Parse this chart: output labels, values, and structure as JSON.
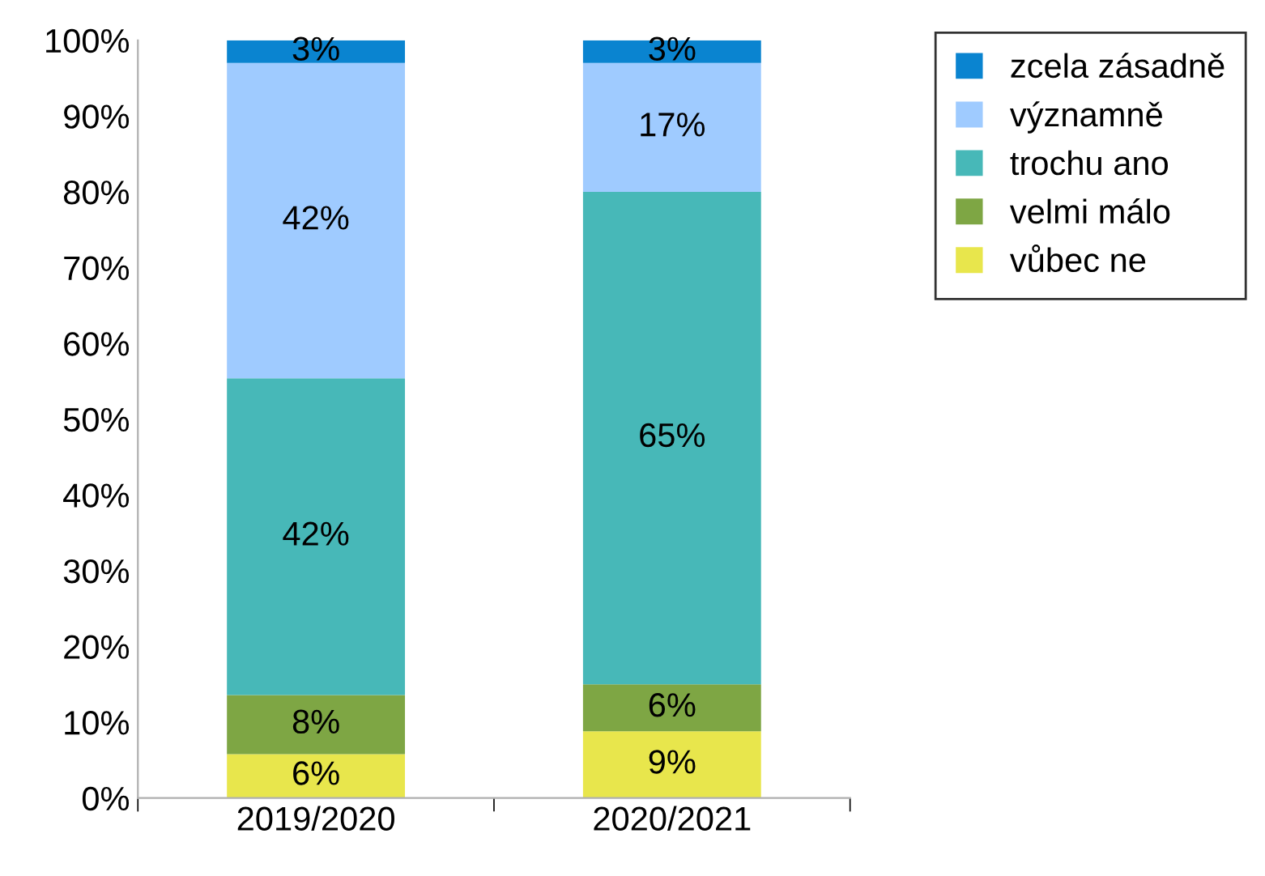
{
  "chart_data": {
    "type": "bar",
    "stacked": true,
    "categories": [
      "2019/2020",
      "2020/2021"
    ],
    "series": [
      {
        "name": "vůbec ne",
        "color": "#e8e64c",
        "values": [
          5.8,
          8.8
        ],
        "value_labels": [
          "6%",
          "9%"
        ]
      },
      {
        "name": "velmi málo",
        "color": "#7ea644",
        "values": [
          7.8,
          6.2
        ],
        "value_labels": [
          "8%",
          "6%"
        ]
      },
      {
        "name": "trochu ano",
        "color": "#47b8b8",
        "values": [
          41.8,
          65
        ],
        "value_labels": [
          "42%",
          "65%"
        ]
      },
      {
        "name": "významně",
        "color": "#9fcbff",
        "values": [
          41.6,
          17
        ],
        "value_labels": [
          "42%",
          "17%"
        ]
      },
      {
        "name": "zcela zásadně",
        "color": "#0a84d0",
        "values": [
          3,
          3
        ],
        "value_labels": [
          "3%",
          "3%"
        ]
      }
    ],
    "ylim": [
      0,
      100
    ],
    "yticks": [
      {
        "value": 0,
        "label": "0%"
      },
      {
        "value": 10,
        "label": "10%"
      },
      {
        "value": 20,
        "label": "20%"
      },
      {
        "value": 30,
        "label": "30%"
      },
      {
        "value": 40,
        "label": "40%"
      },
      {
        "value": 50,
        "label": "50%"
      },
      {
        "value": 60,
        "label": "60%"
      },
      {
        "value": 70,
        "label": "70%"
      },
      {
        "value": 80,
        "label": "80%"
      },
      {
        "value": 90,
        "label": "90%"
      },
      {
        "value": 100,
        "label": "100%"
      }
    ],
    "grid": false,
    "legend": "right"
  }
}
